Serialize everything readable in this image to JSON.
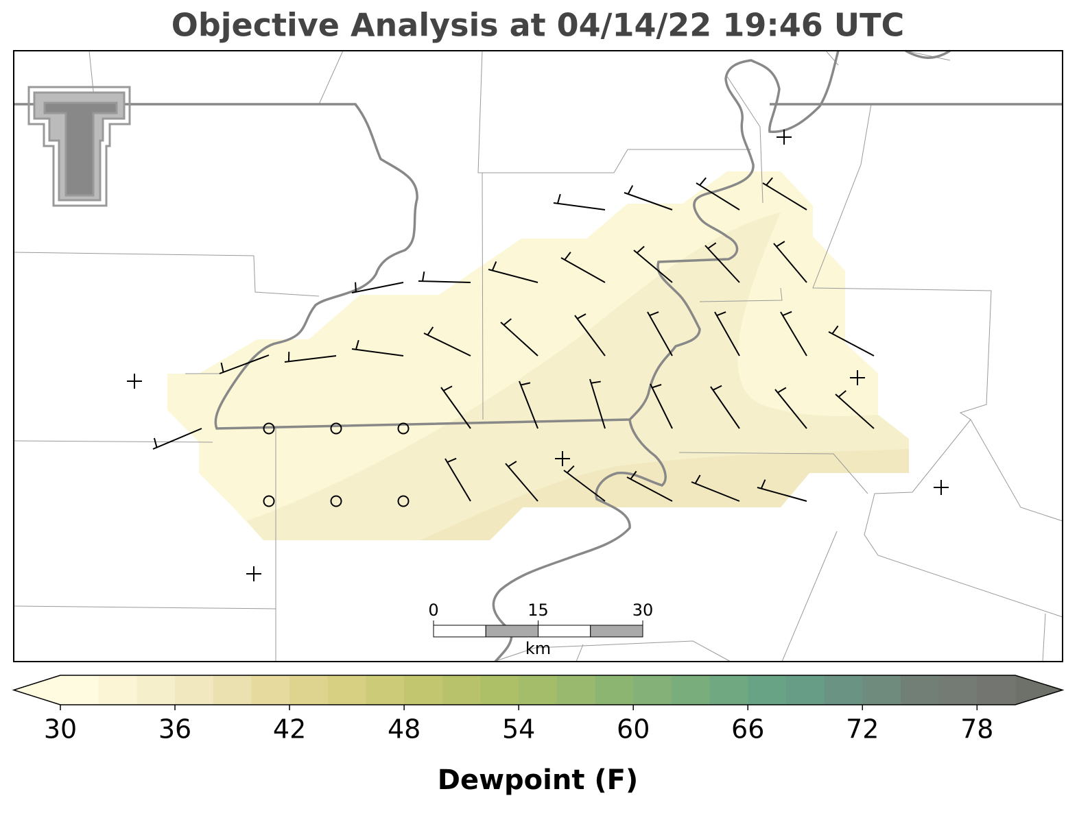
{
  "title": "Objective Analysis at 04/14/22 19:46 UTC",
  "colorbar": {
    "label": "Dewpoint (F)",
    "range": [
      30,
      80
    ],
    "ticks": [
      30,
      36,
      42,
      48,
      54,
      60,
      66,
      72,
      78
    ],
    "colors": [
      "#fffbe0",
      "#fbf5d6",
      "#f6efcb",
      "#f1e8bf",
      "#ebe0b0",
      "#e6da9e",
      "#dfd48f",
      "#d7cf82",
      "#cccb77",
      "#c2c66f",
      "#b8c26a",
      "#adc068",
      "#a3bd6a",
      "#98b96e",
      "#8db572",
      "#83b177",
      "#79ad7c",
      "#70a882",
      "#68a386",
      "#679c86",
      "#6a9383",
      "#6e8b7e",
      "#717f77",
      "#737b74",
      "#737670"
    ],
    "under_color": "#fffbe0",
    "over_color": "#6e716a"
  },
  "scale_bar": {
    "ticks": [
      0,
      15,
      30
    ],
    "unit": "km"
  }
}
